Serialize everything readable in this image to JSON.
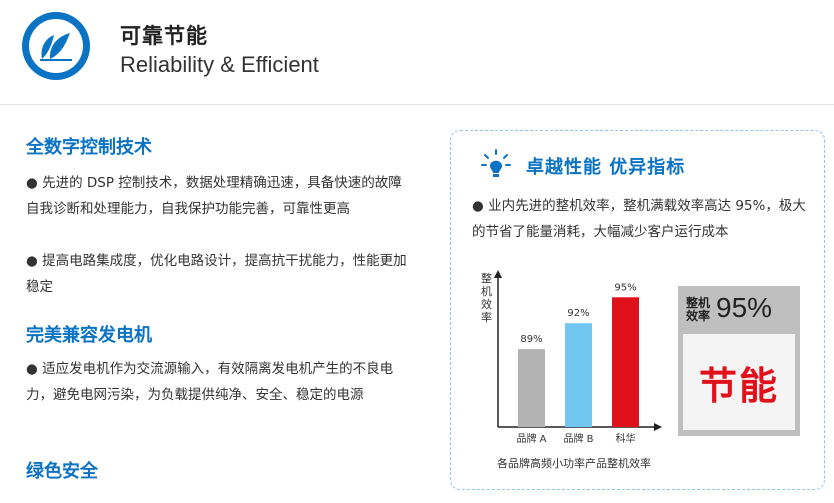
{
  "header": {
    "title": "可靠节能",
    "subtitle": "Reliability & Efficient",
    "logo_icon": "leaf-icon"
  },
  "left": {
    "sections": [
      {
        "title": "全数字控制技术",
        "paragraphs": [
          "● 先进的 DSP 控制技术，数据处理精确迅速，具备快速的故障自我诊断和处理能力，自我保护功能完善，可靠性更高",
          "● 提高电路集成度，优化电路设计，提高抗干扰能力，性能更加稳定"
        ]
      },
      {
        "title": "完美兼容发电机",
        "paragraphs": [
          "● 适应发电机作为交流源输入，有效隔离发电机产生的不良电力，避免电网污染，为负载提供纯净、安全、稳定的电源"
        ]
      },
      {
        "title": "绿色安全",
        "paragraphs": []
      }
    ]
  },
  "card": {
    "icon": "lightbulb-icon",
    "title": "卓越性能 优异指标",
    "text": "● 业内先进的整机效率，整机满载效率高达 95%，极大的节省了能量消耗，大幅减少客户运行成本",
    "efficiency_label": "整机效率",
    "efficiency_value": "95%",
    "badge_text": "节能"
  },
  "chart_data": {
    "type": "bar",
    "title": "",
    "caption": "各品牌高频小功率产品整机效率",
    "ylabel": "整机效率",
    "xlabel": "",
    "categories": [
      "品牌 A",
      "品牌 B",
      "科华"
    ],
    "values": [
      89,
      92,
      95
    ],
    "value_labels": [
      "89%",
      "92%",
      "95%"
    ],
    "colors": [
      "#b3b3b3",
      "#6ec6f1",
      "#e0111b"
    ],
    "ylim": [
      80,
      97
    ]
  }
}
